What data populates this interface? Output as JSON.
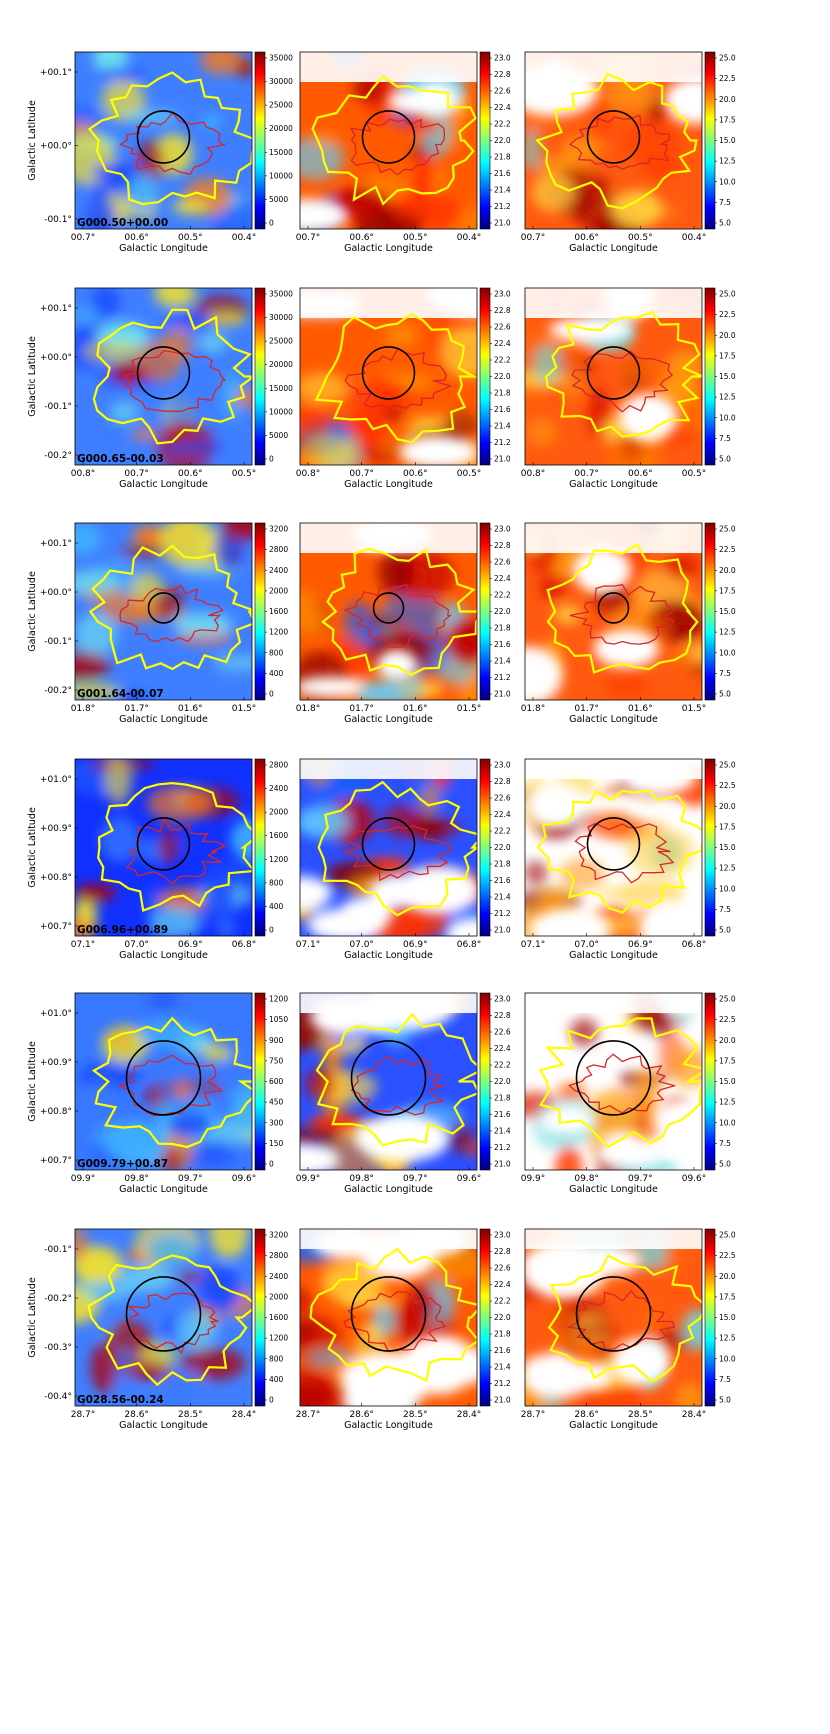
{
  "figure": {
    "axis_labels": {
      "x": "Galactic Longitude",
      "y": "Galactic Latitude"
    },
    "colormap_stops": [
      "#00007f",
      "#0000ff",
      "#007fff",
      "#00ffff",
      "#7fff7f",
      "#ffff00",
      "#ff7f00",
      "#ff0000",
      "#7f0000"
    ],
    "contour_colors": {
      "outer": "#ffff00",
      "inner": "#d62728"
    },
    "column_colorbars": [
      {
        "column": "middle",
        "ticks": [
          "23.0",
          "22.8",
          "22.6",
          "22.4",
          "22.2",
          "22.0",
          "21.8",
          "21.6",
          "21.4",
          "21.2",
          "21.0"
        ]
      },
      {
        "column": "right",
        "ticks": [
          "25.0",
          "22.5",
          "20.0",
          "17.5",
          "15.0",
          "12.5",
          "10.0",
          "7.5",
          "5.0"
        ]
      }
    ],
    "rows": [
      {
        "label": "G000.50+00.00",
        "xticks": [
          "00.7°",
          "00.6°",
          "00.5°",
          "00.4°"
        ],
        "yticks": [
          "+00.1°",
          "+00.0°",
          "-00.1°"
        ],
        "left_colorbar_ticks": [
          "35000",
          "30000",
          "25000",
          "20000",
          "15000",
          "10000",
          "5000",
          "0"
        ]
      },
      {
        "label": "G000.65-00.03",
        "xticks": [
          "00.8°",
          "00.7°",
          "00.6°",
          "00.5°"
        ],
        "yticks": [
          "+00.1°",
          "+00.0°",
          "-00.1°",
          "-00.2°"
        ],
        "left_colorbar_ticks": [
          "35000",
          "30000",
          "25000",
          "20000",
          "15000",
          "10000",
          "5000",
          "0"
        ]
      },
      {
        "label": "G001.64-00.07",
        "xticks": [
          "01.8°",
          "01.7°",
          "01.6°",
          "01.5°"
        ],
        "yticks": [
          "+00.1°",
          "+00.0°",
          "-00.1°",
          "-00.2°"
        ],
        "left_colorbar_ticks": [
          "3200",
          "2800",
          "2400",
          "2000",
          "1600",
          "1200",
          "800",
          "400",
          "0"
        ]
      },
      {
        "label": "G006.96+00.89",
        "xticks": [
          "07.1°",
          "07.0°",
          "06.9°",
          "06.8°"
        ],
        "yticks": [
          "+01.0°",
          "+00.9°",
          "+00.8°",
          "+00.7°"
        ],
        "left_colorbar_ticks": [
          "2800",
          "2400",
          "2000",
          "1600",
          "1200",
          "800",
          "400",
          "0"
        ]
      },
      {
        "label": "G009.79+00.87",
        "xticks": [
          "09.9°",
          "09.8°",
          "09.7°",
          "09.6°"
        ],
        "yticks": [
          "+01.0°",
          "+00.9°",
          "+00.8°",
          "+00.7°"
        ],
        "left_colorbar_ticks": [
          "1200",
          "1050",
          "900",
          "750",
          "600",
          "450",
          "300",
          "150",
          "0"
        ]
      },
      {
        "label": "G028.56-00.24",
        "xticks": [
          "28.7°",
          "28.6°",
          "28.5°",
          "28.4°"
        ],
        "yticks": [
          "-00.1°",
          "-00.2°",
          "-00.3°",
          "-00.4°"
        ],
        "left_colorbar_ticks": [
          "3200",
          "2800",
          "2400",
          "2000",
          "1600",
          "1200",
          "800",
          "400",
          "0"
        ]
      }
    ]
  }
}
